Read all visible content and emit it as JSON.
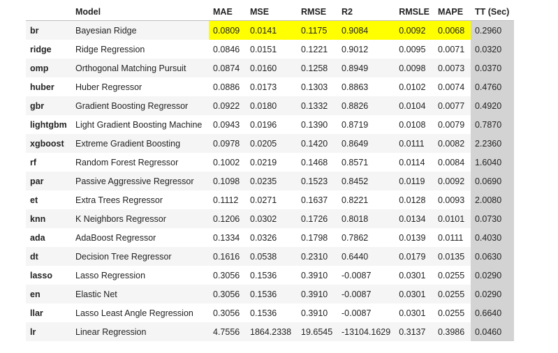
{
  "colors": {
    "highlight": "#ffff00",
    "tt_column": "#d3d3d3",
    "stripe": "#f5f5f5"
  },
  "headers": {
    "index": "",
    "model": "Model",
    "mae": "MAE",
    "mse": "MSE",
    "rmse": "RMSE",
    "r2": "R2",
    "rmsle": "RMSLE",
    "mape": "MAPE",
    "tt": "TT (Sec)"
  },
  "rows": [
    {
      "idx": "br",
      "model": "Bayesian Ridge",
      "mae": "0.0809",
      "mse": "0.0141",
      "rmse": "0.1175",
      "r2": "0.9084",
      "rmsle": "0.0092",
      "mape": "0.0068",
      "tt": "0.2960"
    },
    {
      "idx": "ridge",
      "model": "Ridge Regression",
      "mae": "0.0846",
      "mse": "0.0151",
      "rmse": "0.1221",
      "r2": "0.9012",
      "rmsle": "0.0095",
      "mape": "0.0071",
      "tt": "0.0320"
    },
    {
      "idx": "omp",
      "model": "Orthogonal Matching Pursuit",
      "mae": "0.0874",
      "mse": "0.0160",
      "rmse": "0.1258",
      "r2": "0.8949",
      "rmsle": "0.0098",
      "mape": "0.0073",
      "tt": "0.0370"
    },
    {
      "idx": "huber",
      "model": "Huber Regressor",
      "mae": "0.0886",
      "mse": "0.0173",
      "rmse": "0.1303",
      "r2": "0.8863",
      "rmsle": "0.0102",
      "mape": "0.0074",
      "tt": "0.4760"
    },
    {
      "idx": "gbr",
      "model": "Gradient Boosting Regressor",
      "mae": "0.0922",
      "mse": "0.0180",
      "rmse": "0.1332",
      "r2": "0.8826",
      "rmsle": "0.0104",
      "mape": "0.0077",
      "tt": "0.4920"
    },
    {
      "idx": "lightgbm",
      "model": "Light Gradient Boosting Machine",
      "mae": "0.0943",
      "mse": "0.0196",
      "rmse": "0.1390",
      "r2": "0.8719",
      "rmsle": "0.0108",
      "mape": "0.0079",
      "tt": "0.7870"
    },
    {
      "idx": "xgboost",
      "model": "Extreme Gradient Boosting",
      "mae": "0.0978",
      "mse": "0.0205",
      "rmse": "0.1420",
      "r2": "0.8649",
      "rmsle": "0.0111",
      "mape": "0.0082",
      "tt": "2.2360"
    },
    {
      "idx": "rf",
      "model": "Random Forest Regressor",
      "mae": "0.1002",
      "mse": "0.0219",
      "rmse": "0.1468",
      "r2": "0.8571",
      "rmsle": "0.0114",
      "mape": "0.0084",
      "tt": "1.6040"
    },
    {
      "idx": "par",
      "model": "Passive Aggressive Regressor",
      "mae": "0.1098",
      "mse": "0.0235",
      "rmse": "0.1523",
      "r2": "0.8452",
      "rmsle": "0.0119",
      "mape": "0.0092",
      "tt": "0.0690"
    },
    {
      "idx": "et",
      "model": "Extra Trees Regressor",
      "mae": "0.1112",
      "mse": "0.0271",
      "rmse": "0.1637",
      "r2": "0.8221",
      "rmsle": "0.0128",
      "mape": "0.0093",
      "tt": "2.0080"
    },
    {
      "idx": "knn",
      "model": "K Neighbors Regressor",
      "mae": "0.1206",
      "mse": "0.0302",
      "rmse": "0.1726",
      "r2": "0.8018",
      "rmsle": "0.0134",
      "mape": "0.0101",
      "tt": "0.0730"
    },
    {
      "idx": "ada",
      "model": "AdaBoost Regressor",
      "mae": "0.1334",
      "mse": "0.0326",
      "rmse": "0.1798",
      "r2": "0.7862",
      "rmsle": "0.0139",
      "mape": "0.0111",
      "tt": "0.4030"
    },
    {
      "idx": "dt",
      "model": "Decision Tree Regressor",
      "mae": "0.1616",
      "mse": "0.0538",
      "rmse": "0.2310",
      "r2": "0.6440",
      "rmsle": "0.0179",
      "mape": "0.0135",
      "tt": "0.0630"
    },
    {
      "idx": "lasso",
      "model": "Lasso Regression",
      "mae": "0.3056",
      "mse": "0.1536",
      "rmse": "0.3910",
      "r2": "-0.0087",
      "rmsle": "0.0301",
      "mape": "0.0255",
      "tt": "0.0290"
    },
    {
      "idx": "en",
      "model": "Elastic Net",
      "mae": "0.3056",
      "mse": "0.1536",
      "rmse": "0.3910",
      "r2": "-0.0087",
      "rmsle": "0.0301",
      "mape": "0.0255",
      "tt": "0.0290"
    },
    {
      "idx": "llar",
      "model": "Lasso Least Angle Regression",
      "mae": "0.3056",
      "mse": "0.1536",
      "rmse": "0.3910",
      "r2": "-0.0087",
      "rmsle": "0.0301",
      "mape": "0.0255",
      "tt": "0.6640"
    },
    {
      "idx": "lr",
      "model": "Linear Regression",
      "mae": "4.7556",
      "mse": "1864.2338",
      "rmse": "19.6545",
      "r2": "-13104.1629",
      "rmsle": "0.3137",
      "mape": "0.3986",
      "tt": "0.0460"
    }
  ]
}
